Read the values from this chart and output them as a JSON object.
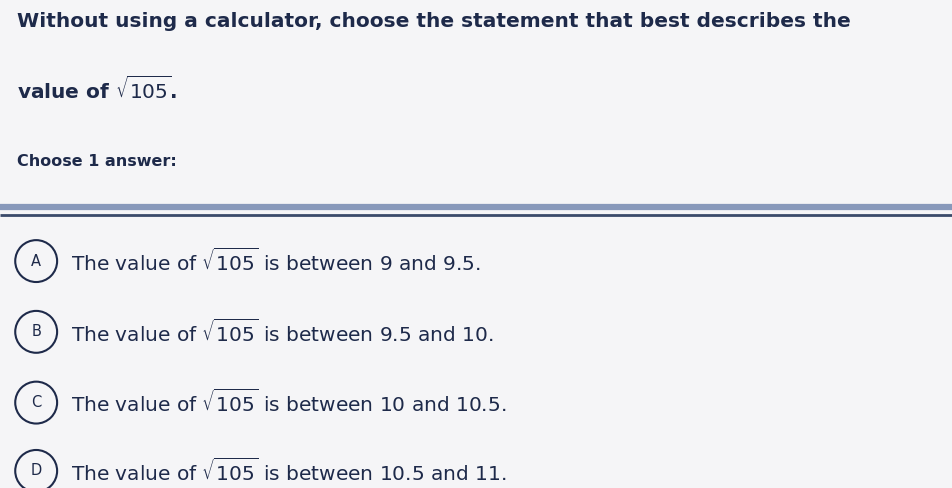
{
  "background_color": "#f5f5f7",
  "title_line1": "Without using a calculator, choose the statement that best describes the",
  "title_line2": "value of $\\sqrt{105}$.",
  "choose_label": "Choose 1 answer:",
  "letters": [
    "A",
    "B",
    "C",
    "D"
  ],
  "option_texts": [
    "The value of $\\sqrt{105}$ is between 9 and 9.5.",
    "The value of $\\sqrt{105}$ is between 9.5 and 10.",
    "The value of $\\sqrt{105}$ is between 10 and 10.5.",
    "The value of $\\sqrt{105}$ is between 10.5 and 11."
  ],
  "text_color": "#1e2a4a",
  "circle_edge_color": "#1e2a4a",
  "separator_color1": "#8899bb",
  "separator_color2": "#3a4a6a",
  "title_fontsize": 14.5,
  "choose_fontsize": 11.5,
  "option_fontsize": 14.5,
  "letter_fontsize": 10.5
}
